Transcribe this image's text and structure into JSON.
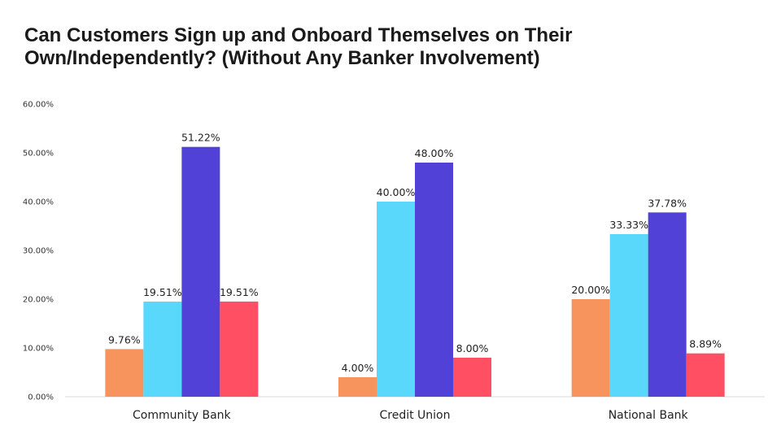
{
  "title_lines": [
    "Can Customers Sign up and Onboard Themselves on Their",
    "Own/Independently? (Without Any Banker Involvement)"
  ],
  "chart_data": {
    "type": "bar",
    "title": "Can Customers Sign up and Onboard Themselves on Their Own/Independently? (Without Any Banker Involvement)",
    "categories": [
      "Community Bank",
      "Credit Union",
      "National Bank"
    ],
    "series": [
      {
        "color": "#F7935C",
        "values": [
          9.76,
          4.0,
          20.0
        ],
        "labels": [
          "9.76%",
          "4.00%",
          "20.00%"
        ]
      },
      {
        "color": "#5AD8FB",
        "values": [
          19.51,
          40.0,
          33.33
        ],
        "labels": [
          "19.51%",
          "40.00%",
          "33.33%"
        ]
      },
      {
        "color": "#5141D6",
        "values": [
          51.22,
          48.0,
          37.78
        ],
        "labels": [
          "51.22%",
          "48.00%",
          "37.78%"
        ]
      },
      {
        "color": "#FF4F63",
        "values": [
          19.51,
          8.0,
          8.89
        ],
        "labels": [
          "19.51%",
          "8.00%",
          "8.89%"
        ]
      }
    ],
    "ylim": [
      0,
      60
    ],
    "yticks": [
      0,
      10,
      20,
      30,
      40,
      50,
      60
    ],
    "ytick_labels": [
      "0.00%",
      "10.00%",
      "20.00%",
      "30.00%",
      "40.00%",
      "50.00%",
      "60.00%"
    ],
    "grid": false,
    "legend": "none"
  }
}
